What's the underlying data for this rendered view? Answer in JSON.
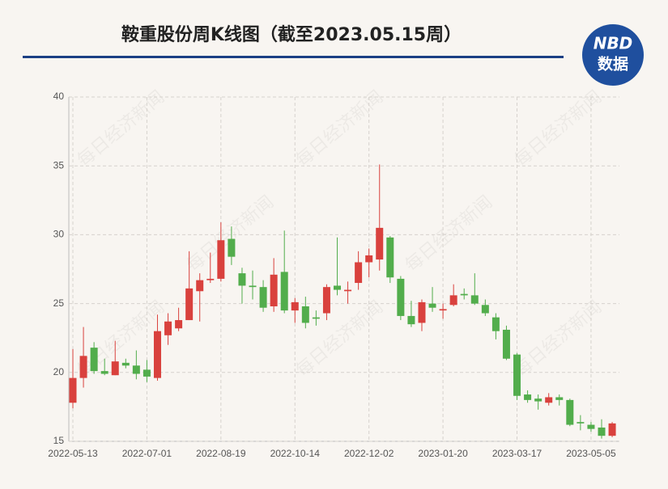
{
  "chart_data": {
    "type": "candlestick",
    "title": "鞍重股份周K线图（截至2023.05.15周）",
    "categories": [
      "2022-05-13",
      null,
      null,
      null,
      null,
      null,
      null,
      "2022-07-01",
      null,
      null,
      null,
      null,
      null,
      null,
      "2022-08-19",
      null,
      null,
      null,
      null,
      null,
      null,
      "2022-10-14",
      null,
      null,
      null,
      null,
      null,
      null,
      "2022-12-02",
      null,
      null,
      null,
      null,
      null,
      null,
      "2023-01-20",
      null,
      null,
      null,
      null,
      null,
      null,
      "2023-03-17",
      null,
      null,
      null,
      null,
      null,
      null,
      "2023-05-05",
      null,
      null
    ],
    "open": [
      17.8,
      19.6,
      21.8,
      20.1,
      19.8,
      20.7,
      20.5,
      20.2,
      19.6,
      22.7,
      23.2,
      23.8,
      25.9,
      26.7,
      26.8,
      29.7,
      27.2,
      26.3,
      26.2,
      24.8,
      27.3,
      24.5,
      24.8,
      24.0,
      24.3,
      26.3,
      25.9,
      26.5,
      28.0,
      28.2,
      29.8,
      26.8,
      24.1,
      23.6,
      25.0,
      24.5,
      24.9,
      25.7,
      25.6,
      24.9,
      24.0,
      23.1,
      21.3,
      18.4,
      18.1,
      17.8,
      18.2,
      18.0,
      16.4,
      16.2,
      16.0,
      15.4
    ],
    "high": [
      21.7,
      23.3,
      22.2,
      21.0,
      22.3,
      21.0,
      21.6,
      20.9,
      24.2,
      24.3,
      24.7,
      28.8,
      27.2,
      28.7,
      30.9,
      30.6,
      27.6,
      27.4,
      26.7,
      28.3,
      30.3,
      25.4,
      25.5,
      24.5,
      26.4,
      29.8,
      26.6,
      28.8,
      29.0,
      35.1,
      29.9,
      27.0,
      25.2,
      25.3,
      26.2,
      25.0,
      26.4,
      26.1,
      27.2,
      25.3,
      24.3,
      23.4,
      21.4,
      18.7,
      18.4,
      18.5,
      18.4,
      18.1,
      16.9,
      16.4,
      16.6,
      16.4
    ],
    "low": [
      17.4,
      18.9,
      19.9,
      19.8,
      19.8,
      20.3,
      19.5,
      19.3,
      19.4,
      22.0,
      23.0,
      23.8,
      23.7,
      26.5,
      26.6,
      27.8,
      25.0,
      25.3,
      24.4,
      24.4,
      24.3,
      23.6,
      23.2,
      23.4,
      23.8,
      25.6,
      25.0,
      26.0,
      26.9,
      27.4,
      26.5,
      23.8,
      23.3,
      23.0,
      24.4,
      23.9,
      24.8,
      25.3,
      24.9,
      24.1,
      22.4,
      20.9,
      18.0,
      17.8,
      17.3,
      17.6,
      17.6,
      16.1,
      15.8,
      15.7,
      15.2,
      15.3
    ],
    "close": [
      19.6,
      21.2,
      20.1,
      19.9,
      20.8,
      20.5,
      19.9,
      19.7,
      23.0,
      23.7,
      23.8,
      26.1,
      26.7,
      26.8,
      29.6,
      28.4,
      26.3,
      26.2,
      24.7,
      27.1,
      24.5,
      25.1,
      23.6,
      23.9,
      26.2,
      26.0,
      26.0,
      28.0,
      28.5,
      30.5,
      26.9,
      24.1,
      23.5,
      25.1,
      24.7,
      24.6,
      25.6,
      25.6,
      25.0,
      24.3,
      23.0,
      21.0,
      18.3,
      18.0,
      17.9,
      18.2,
      18.0,
      16.2,
      16.3,
      15.9,
      15.4,
      16.3
    ],
    "up_color": "#d9413d",
    "down_color": "#52ad4c",
    "ylim": [
      15,
      40
    ],
    "yticks": [
      15,
      20,
      25,
      30,
      35,
      40
    ],
    "grid": true
  },
  "logo": {
    "line1": "NBD",
    "line2": "数据"
  },
  "watermark": "每日经济新闻"
}
